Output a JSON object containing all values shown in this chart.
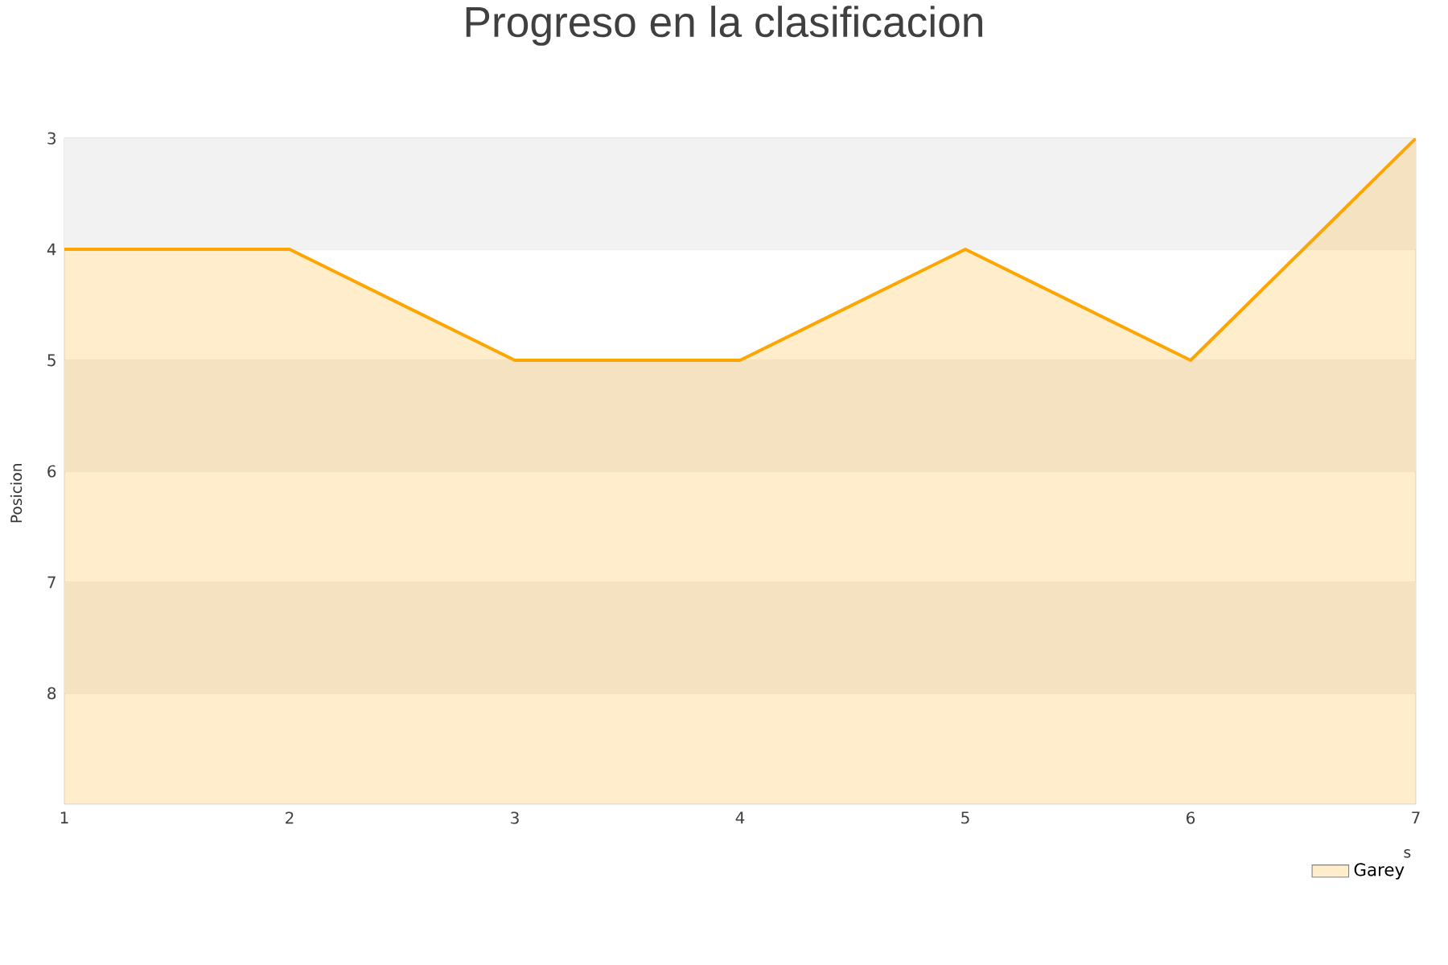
{
  "chart_data": {
    "type": "area",
    "title": "Progreso en la clasificacion",
    "xlabel": "s",
    "ylabel": "Posicion",
    "x": [
      1,
      2,
      3,
      4,
      5,
      6,
      7
    ],
    "series": [
      {
        "name": "Garey",
        "color": "#ffa500",
        "values": [
          4,
          4,
          5,
          5,
          4,
          5,
          3
        ]
      }
    ],
    "xlim": [
      1,
      7
    ],
    "xticks": [
      1,
      2,
      3,
      4,
      5,
      6,
      7
    ],
    "ylim": [
      9,
      3
    ],
    "yticks": [
      3,
      4,
      5,
      6,
      7,
      8
    ],
    "grid": "y",
    "legend": "bottom right",
    "bands": [
      {
        "axis": "y",
        "from": 3,
        "to": 4,
        "color": "#f2f2f2"
      },
      {
        "axis": "y",
        "from": 5,
        "to": 6,
        "color": "#f2f2f2"
      },
      {
        "axis": "y",
        "from": 7,
        "to": 8,
        "color": "#f2f2f2"
      }
    ]
  }
}
